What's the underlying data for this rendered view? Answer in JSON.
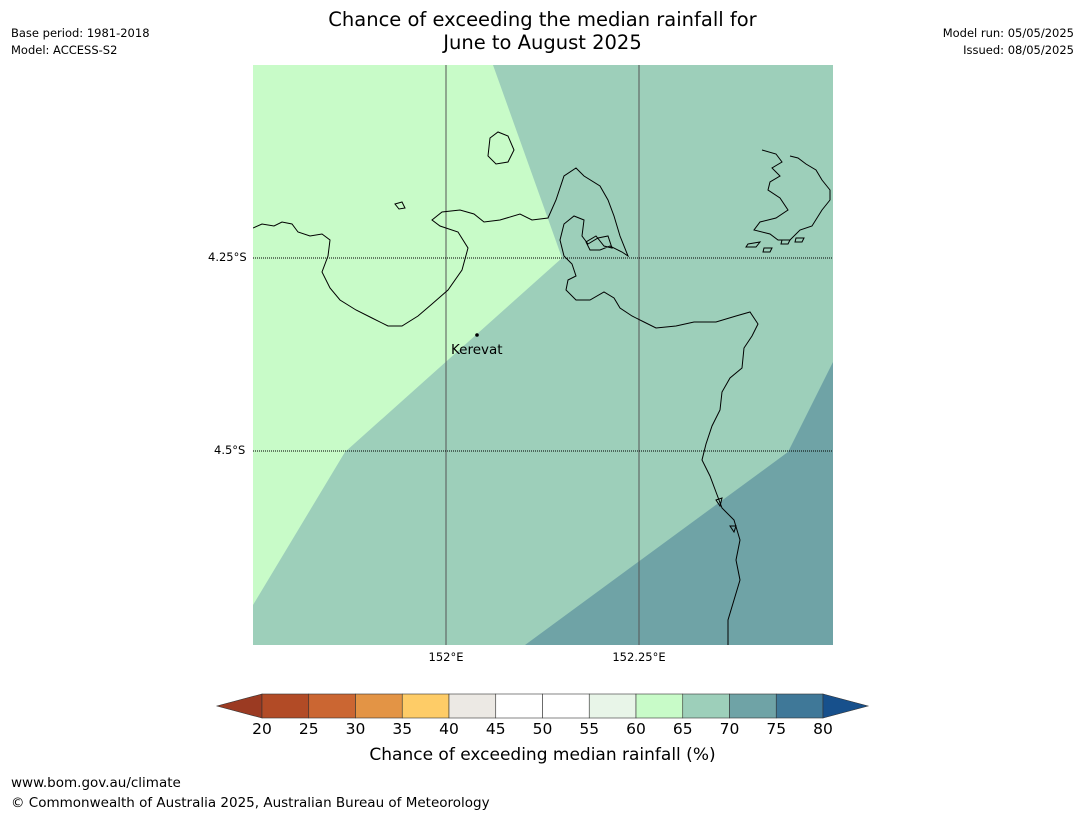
{
  "title_line1": "Chance of exceeding the median rainfall for",
  "title_line2": "June to August 2025",
  "meta_left": {
    "base_period": "Base period: 1981-2018",
    "model": "Model: ACCESS-S2"
  },
  "meta_right": {
    "model_run": "Model run: 05/05/2025",
    "issued": "Issued: 08/05/2025"
  },
  "map": {
    "lat_labels": [
      "4.25°S",
      "4.5°S"
    ],
    "lon_labels": [
      "152°E",
      "152.25°E"
    ],
    "place_label": "Kerevat",
    "zone_colors": {
      "p60_65": "#c8fbc8",
      "p65_70": "#9dcfba",
      "p70_75": "#6fa3a6"
    }
  },
  "colorbar": {
    "title": "Chance of exceeding median rainfall (%)",
    "ticks": [
      "20",
      "25",
      "30",
      "35",
      "40",
      "45",
      "50",
      "55",
      "60",
      "65",
      "70",
      "75",
      "80"
    ],
    "colors": [
      "#9b3a22",
      "#b24b26",
      "#cb6632",
      "#e39445",
      "#fecc67",
      "#ece9e4",
      "#ffffff",
      "#ffffff",
      "#e8f5e8",
      "#c8fbc8",
      "#9dcfba",
      "#6fa3a6",
      "#3f7898",
      "#17508c"
    ]
  },
  "footer": {
    "url": "www.bom.gov.au/climate",
    "copyright": "© Commonwealth of Australia 2025, Australian Bureau of Meteorology"
  }
}
